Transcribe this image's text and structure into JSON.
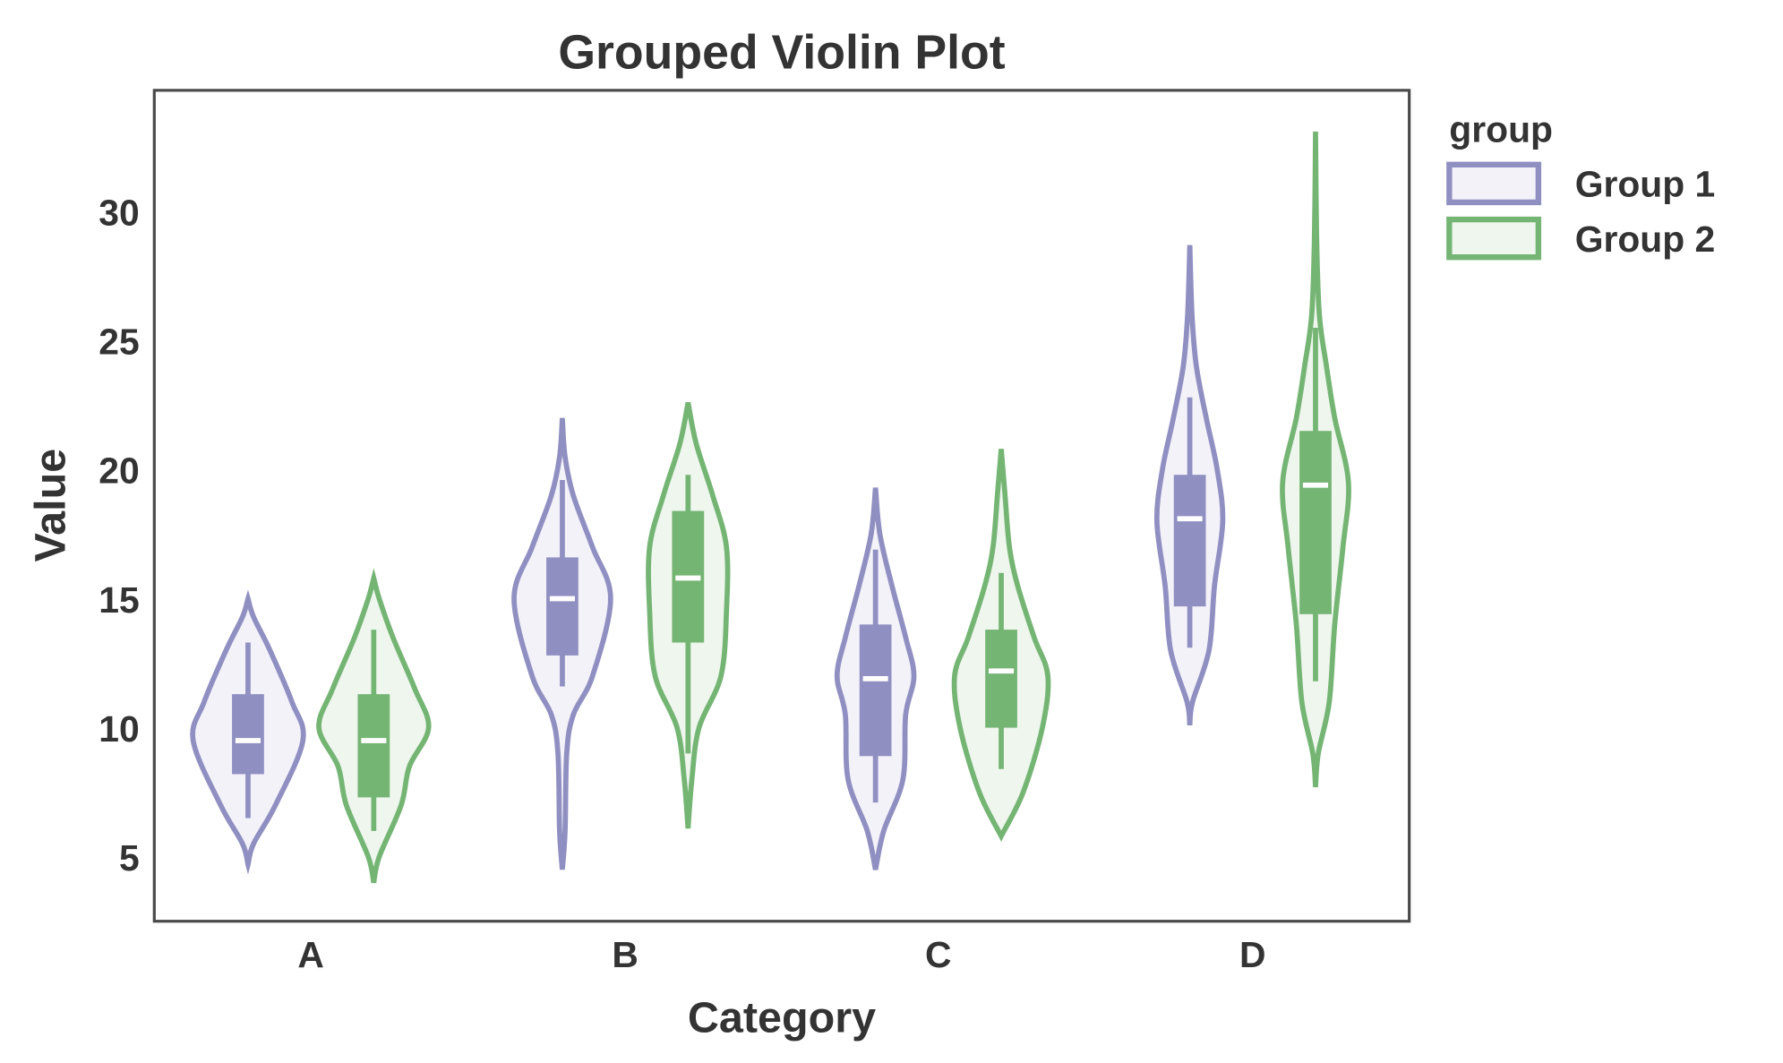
{
  "chart_data": {
    "type": "violin",
    "title": "Grouped Violin Plot",
    "xlabel": "Category",
    "ylabel": "Value",
    "categories": [
      "A",
      "B",
      "C",
      "D"
    ],
    "yticks": [
      5,
      10,
      15,
      20,
      25,
      30
    ],
    "ylim": [
      2.5,
      34.7
    ],
    "grid": false,
    "legend": {
      "title": "group",
      "placement": "outside-top-right"
    },
    "series": [
      {
        "name": "Group 1",
        "color": "#8f8fc2",
        "fill": "#f3f2f9",
        "violins": [
          {
            "min": 4.7,
            "max": 15.0,
            "q1": 8.2,
            "median": 9.5,
            "q3": 11.3,
            "whisker_low": 6.5,
            "whisker_high": 13.3,
            "density": [
              [
                4.7,
                0
              ],
              [
                5.5,
                0.1
              ],
              [
                7,
                0.5
              ],
              [
                9.5,
                1.0
              ],
              [
                11,
                0.8
              ],
              [
                13,
                0.4
              ],
              [
                14.3,
                0.1
              ],
              [
                15.0,
                0
              ]
            ]
          },
          {
            "min": 4.5,
            "max": 22.0,
            "q1": 12.8,
            "median": 15.0,
            "q3": 16.6,
            "whisker_low": 11.6,
            "whisker_high": 19.6,
            "density": [
              [
                4.5,
                0
              ],
              [
                6,
                0.05
              ],
              [
                9,
                0.08
              ],
              [
                10.5,
                0.2
              ],
              [
                12,
                0.55
              ],
              [
                15,
                0.88
              ],
              [
                17,
                0.55
              ],
              [
                19,
                0.2
              ],
              [
                20.5,
                0.05
              ],
              [
                22.0,
                0
              ]
            ]
          },
          {
            "min": 4.5,
            "max": 19.3,
            "q1": 8.9,
            "median": 11.9,
            "q3": 14.0,
            "whisker_low": 7.1,
            "whisker_high": 16.9,
            "density": [
              [
                4.5,
                0
              ],
              [
                6,
                0.15
              ],
              [
                8,
                0.5
              ],
              [
                10.5,
                0.55
              ],
              [
                12,
                0.7
              ],
              [
                13.5,
                0.55
              ],
              [
                15.5,
                0.3
              ],
              [
                17.5,
                0.08
              ],
              [
                19.3,
                0
              ]
            ]
          },
          {
            "min": 10.1,
            "max": 28.7,
            "q1": 14.7,
            "median": 18.1,
            "q3": 19.8,
            "whisker_low": 13.1,
            "whisker_high": 22.8,
            "density": [
              [
                10.1,
                0
              ],
              [
                11,
                0.05
              ],
              [
                13,
                0.35
              ],
              [
                15.5,
                0.45
              ],
              [
                18,
                0.6
              ],
              [
                20,
                0.5
              ],
              [
                22,
                0.3
              ],
              [
                24,
                0.12
              ],
              [
                26,
                0.04
              ],
              [
                28.7,
                0
              ]
            ]
          }
        ]
      },
      {
        "name": "Group 2",
        "color": "#75b574",
        "fill": "#eef6ee",
        "violins": [
          {
            "min": 4.0,
            "max": 15.8,
            "q1": 7.3,
            "median": 9.5,
            "q3": 11.3,
            "whisker_low": 6.0,
            "whisker_high": 13.8,
            "density": [
              [
                4.0,
                0
              ],
              [
                5,
                0.1
              ],
              [
                7,
                0.5
              ],
              [
                8.5,
                0.65
              ],
              [
                10,
                1.0
              ],
              [
                11.5,
                0.75
              ],
              [
                13.5,
                0.35
              ],
              [
                15,
                0.1
              ],
              [
                15.8,
                0
              ]
            ]
          },
          {
            "min": 6.1,
            "max": 22.6,
            "q1": 13.3,
            "median": 15.8,
            "q3": 18.4,
            "whisker_low": 9.0,
            "whisker_high": 19.8,
            "density": [
              [
                6.1,
                0
              ],
              [
                8,
                0.07
              ],
              [
                10,
                0.2
              ],
              [
                12,
                0.6
              ],
              [
                14.5,
                0.7
              ],
              [
                17,
                0.7
              ],
              [
                19,
                0.45
              ],
              [
                21,
                0.15
              ],
              [
                22.6,
                0
              ]
            ]
          },
          {
            "min": 5.8,
            "max": 20.8,
            "q1": 10.0,
            "median": 12.2,
            "q3": 13.8,
            "whisker_low": 8.4,
            "whisker_high": 16.0,
            "density": [
              [
                5.8,
                0
              ],
              [
                7.5,
                0.4
              ],
              [
                10,
                0.75
              ],
              [
                12,
                0.85
              ],
              [
                13.5,
                0.6
              ],
              [
                15.5,
                0.3
              ],
              [
                17,
                0.15
              ],
              [
                19,
                0.07
              ],
              [
                20.8,
                0
              ]
            ]
          },
          {
            "min": 7.7,
            "max": 33.1,
            "q1": 14.4,
            "median": 19.4,
            "q3": 21.5,
            "whisker_low": 11.8,
            "whisker_high": 25.5,
            "density": [
              [
                7.7,
                0
              ],
              [
                9,
                0.05
              ],
              [
                11,
                0.25
              ],
              [
                14,
                0.35
              ],
              [
                17,
                0.5
              ],
              [
                19.5,
                0.6
              ],
              [
                22,
                0.35
              ],
              [
                24,
                0.2
              ],
              [
                26,
                0.07
              ],
              [
                29,
                0.02
              ],
              [
                33.1,
                0
              ]
            ]
          }
        ]
      }
    ]
  }
}
